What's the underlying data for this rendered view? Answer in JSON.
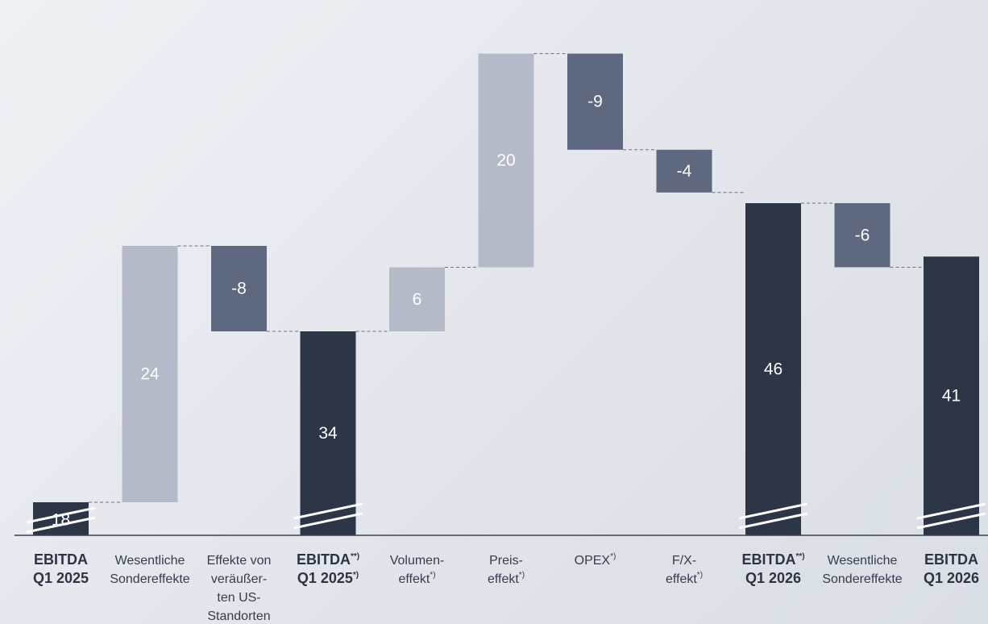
{
  "chart_data": {
    "type": "bar",
    "subtype": "waterfall",
    "title": "",
    "xlabel": "",
    "ylabel": "",
    "steps": [
      {
        "label": [
          "EBITDA",
          "Q1 2025"
        ],
        "sup": [
          "",
          ""
        ],
        "value": 18,
        "kind": "total",
        "bold": true,
        "broken": true
      },
      {
        "label": [
          "Wesentliche",
          "Sondereffekte"
        ],
        "sup": [
          "",
          ""
        ],
        "value": 24,
        "kind": "increase",
        "bold": false
      },
      {
        "label": [
          "Effekte von",
          "veräußer-",
          "ten US-",
          "Standorten"
        ],
        "sup": [
          "",
          "",
          "",
          ""
        ],
        "value": -8,
        "kind": "decrease",
        "bold": false
      },
      {
        "label": [
          "EBITDA",
          "Q1 2025"
        ],
        "sup": [
          "**)",
          "*)"
        ],
        "value": 34,
        "kind": "total",
        "bold": true,
        "broken": true
      },
      {
        "label": [
          "Volumen-",
          "effekt"
        ],
        "sup": [
          "",
          "*)"
        ],
        "value": 6,
        "kind": "increase",
        "bold": false
      },
      {
        "label": [
          "Preis-",
          "effekt"
        ],
        "sup": [
          "",
          "*)"
        ],
        "value": 20,
        "kind": "increase",
        "bold": false
      },
      {
        "label": [
          "OPEX"
        ],
        "sup": [
          "*)"
        ],
        "value": -9,
        "kind": "decrease",
        "bold": false
      },
      {
        "label": [
          "F/X-",
          "effekt"
        ],
        "sup": [
          "",
          "*)"
        ],
        "value": -4,
        "kind": "decrease",
        "bold": false
      },
      {
        "label": [
          "EBITDA",
          "Q1 2026"
        ],
        "sup": [
          "**)",
          ""
        ],
        "value": 46,
        "kind": "total",
        "bold": true,
        "broken": true
      },
      {
        "label": [
          "Wesentliche",
          "Sondereffekte"
        ],
        "sup": [
          "",
          ""
        ],
        "value": -6,
        "kind": "decrease",
        "bold": false
      },
      {
        "label": [
          "EBITDA",
          "Q1 2026"
        ],
        "sup": [
          "",
          ""
        ],
        "value": 41,
        "kind": "total",
        "bold": true,
        "broken": true
      }
    ],
    "colors": {
      "total": "#2d3647",
      "increase": "#b5bac9",
      "decrease": "#5e6980",
      "connector": "#6b7280",
      "axis": "#3a4250"
    }
  }
}
